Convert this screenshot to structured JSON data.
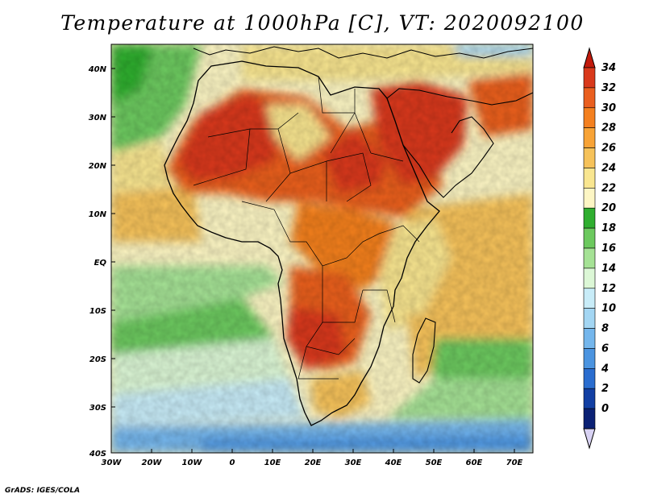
{
  "title": "Temperature at 1000hPa [C], VT: 2020092100",
  "credit": "GrADS: IGES/COLA",
  "map": {
    "region": "Africa",
    "lon_range": [
      -30,
      75
    ],
    "lat_range": [
      -40,
      44
    ],
    "lon_ticks": [
      "30W",
      "20W",
      "10W",
      "0",
      "10E",
      "20E",
      "30E",
      "40E",
      "50E",
      "60E",
      "70E"
    ],
    "lat_ticks": [
      "40N",
      "30N",
      "20N",
      "10N",
      "EQ",
      "10S",
      "20S",
      "30S",
      "40S"
    ]
  },
  "colorbar": {
    "labels": [
      "34",
      "32",
      "30",
      "28",
      "26",
      "24",
      "22",
      "20",
      "18",
      "16",
      "14",
      "12",
      "10",
      "8",
      "6",
      "4",
      "2",
      "0"
    ],
    "colors": [
      "#c21a0c",
      "#d9391b",
      "#ea5f1f",
      "#f4801f",
      "#f8a336",
      "#f6c25a",
      "#f9e690",
      "#fdf6c4",
      "#2fae2f",
      "#6cc95e",
      "#a5e295",
      "#dcf7d6",
      "#c8ecf8",
      "#a3d6f3",
      "#74b6ec",
      "#4b94e0",
      "#2a6dcf",
      "#123fa3",
      "#0b2175",
      "#d8d2f3"
    ]
  }
}
